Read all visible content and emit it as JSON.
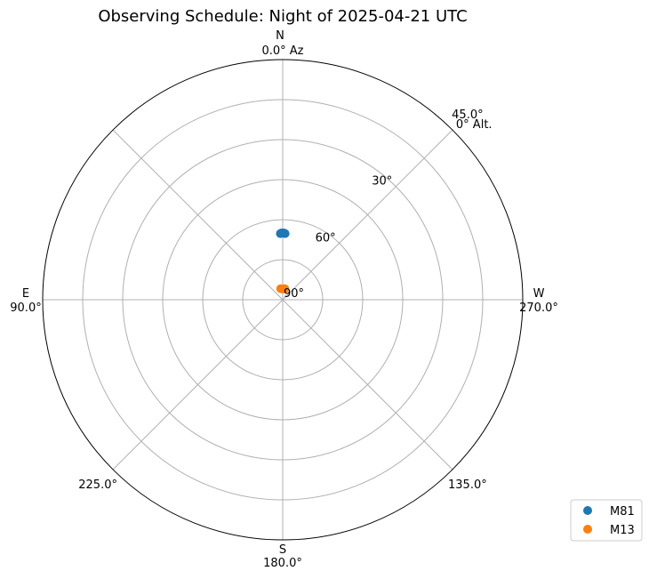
{
  "chart_data": {
    "type": "scatter",
    "projection": "polar-sky (azimuth clockwise from north, altitude radial: zenith at center)",
    "title": "Observing Schedule: Night of 2025-04-21 UTC",
    "azimuth_direction": "clockwise",
    "cardinal_labels": [
      {
        "name": "N",
        "az": 0
      },
      {
        "name": "E",
        "az": 90
      },
      {
        "name": "S",
        "az": 180
      },
      {
        "name": "W",
        "az": 270
      }
    ],
    "azimuth_ticks": [
      {
        "az": 0,
        "label": "0.0° Az"
      },
      {
        "az": 45,
        "label": "45.0°"
      },
      {
        "az": 90,
        "label": "90.0°"
      },
      {
        "az": 135,
        "label": "135.0°"
      },
      {
        "az": 180,
        "label": "180.0°"
      },
      {
        "az": 225,
        "label": "225.0°"
      },
      {
        "az": 270,
        "label": "270.0°"
      }
    ],
    "altitude_rings": [
      0,
      15,
      30,
      45,
      60,
      75
    ],
    "altitude_labels": [
      {
        "alt": 0,
        "label": "0° Alt."
      },
      {
        "alt": 30,
        "label": "30°"
      },
      {
        "alt": 60,
        "label": "60°"
      },
      {
        "alt": 90,
        "label": "90°"
      }
    ],
    "altitude_label_az": 315,
    "grid": true,
    "legend_position": "bottom-right",
    "series": [
      {
        "name": "M81",
        "color": "#1f77b4",
        "points": [
          {
            "az": 0,
            "alt": 65
          },
          {
            "az": 359,
            "alt": 65
          },
          {
            "az": 1,
            "alt": 65
          },
          {
            "az": 358,
            "alt": 65.2
          },
          {
            "az": 2,
            "alt": 65.2
          }
        ]
      },
      {
        "name": "M13",
        "color": "#ff7f0e",
        "points": [
          {
            "az": 0,
            "alt": 86
          },
          {
            "az": 350,
            "alt": 85.8
          },
          {
            "az": 10,
            "alt": 85.8
          }
        ]
      }
    ]
  }
}
